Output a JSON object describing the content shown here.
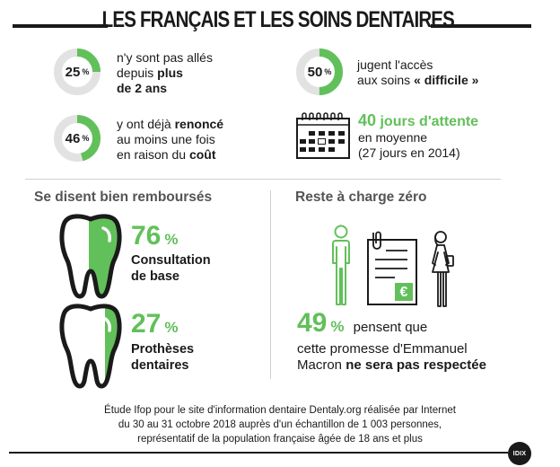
{
  "title": "LES FRANÇAIS ET LES SOINS DENTAIRES",
  "colors": {
    "accent": "#62c05a",
    "ring_bg": "#e2e2e2",
    "text": "#1a1a1a",
    "muted": "#555555"
  },
  "stats": [
    {
      "value": "25",
      "unit": "%",
      "fraction": 0.25,
      "line1": "n'y sont pas allés",
      "line2_pre": "depuis ",
      "line2_bold": "plus",
      "line3_bold": "de 2 ans"
    },
    {
      "value": "46",
      "unit": "%",
      "fraction": 0.46,
      "line1_pre": "y ont déjà ",
      "line1_bold": "renoncé",
      "line2": "au moins une fois",
      "line3_pre": "en raison du ",
      "line3_bold": "coût"
    },
    {
      "value": "50",
      "unit": "%",
      "fraction": 0.5,
      "line1": "jugent l'accès",
      "line2_pre": "aux soins ",
      "line2_bold": "« difficile »"
    }
  ],
  "wait": {
    "days": "40",
    "label": " jours d'attente",
    "line2": "en moyenne",
    "line3": "(27 jours en 2014)"
  },
  "left_section": {
    "heading": "Se disent bien remboursés",
    "items": [
      {
        "value": "76",
        "unit": "%",
        "fraction": 0.76,
        "line1": "Consultation",
        "line2": "de base"
      },
      {
        "value": "27",
        "unit": "%",
        "fraction": 0.27,
        "line1": "Prothèses",
        "line2": "dentaires"
      }
    ]
  },
  "right_section": {
    "heading": "Reste à charge zéro",
    "value": "49",
    "unit": "%",
    "line1": " pensent que",
    "line2": "cette promesse d'Emmanuel",
    "line3_pre": "Macron ",
    "line3_bold": "ne sera pas respectée",
    "euro": "€"
  },
  "footer": {
    "line1": "Étude Ifop pour le site d'information dentaire Dentaly.org réalisée par Internet",
    "line2": "du 30 au 31 octobre 2018 auprès d'un échantillon de 1 003 personnes,",
    "line3": "représentatif de la population française âgée de 18 ans et plus"
  },
  "logo": "IDIX"
}
